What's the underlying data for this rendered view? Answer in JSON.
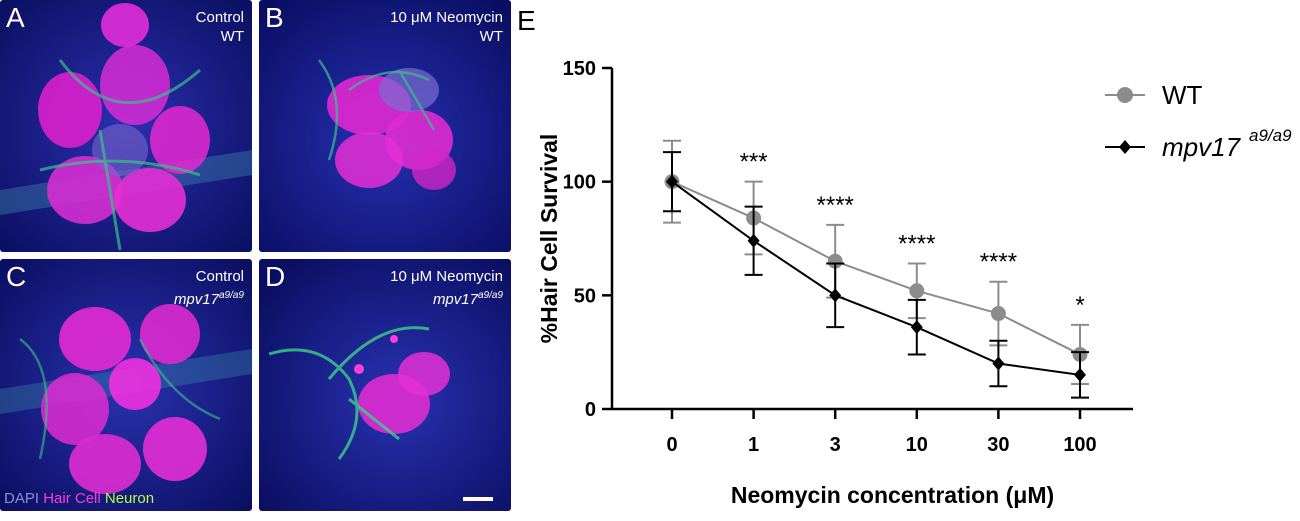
{
  "panels": [
    {
      "letter": "A",
      "caption_line1": "Control",
      "caption_line2": "WT",
      "caption_italic": false
    },
    {
      "letter": "B",
      "caption_line1": "10 μM Neomycin",
      "caption_line2": "WT",
      "caption_italic": false
    },
    {
      "letter": "C",
      "caption_line1": "Control",
      "caption_line2": "mpv17",
      "caption_sup": "a9/a9",
      "caption_italic": true
    },
    {
      "letter": "D",
      "caption_line1": "10 μM Neomycin",
      "caption_line2": "mpv17",
      "caption_sup": "a9/a9",
      "caption_italic": true
    }
  ],
  "stain_legend": {
    "dapi": "DAPI",
    "hair_cell": "Hair Cell",
    "neuron": "Neuron",
    "colors": {
      "dapi": "#8a8fd0",
      "hair_cell": "#ff3bd8",
      "neuron": "#b6ff3a"
    }
  },
  "chart_data": {
    "panel_letter": "E",
    "type": "line",
    "xlabel": "Neomycin concentration (μM)",
    "ylabel": "%Hair Cell Survival",
    "categories": [
      "0",
      "1",
      "3",
      "10",
      "30",
      "100"
    ],
    "ylim": [
      0,
      150
    ],
    "yticks": [
      0,
      50,
      100,
      150
    ],
    "series": [
      {
        "name": "WT",
        "color": "#8c8c8c",
        "marker": "circle",
        "values": [
          100,
          84,
          65,
          52,
          42,
          24
        ],
        "error": [
          18,
          16,
          16,
          12,
          14,
          13
        ]
      },
      {
        "name": "mpv17",
        "name_sup": "a9/a9",
        "italic": true,
        "color": "#000000",
        "marker": "diamond",
        "values": [
          100,
          74,
          50,
          36,
          20,
          15
        ],
        "error": [
          13,
          15,
          14,
          12,
          10,
          10
        ]
      }
    ],
    "significance": [
      "",
      "***",
      "****",
      "****",
      "****",
      "*"
    ],
    "legend_position": "top-right"
  }
}
